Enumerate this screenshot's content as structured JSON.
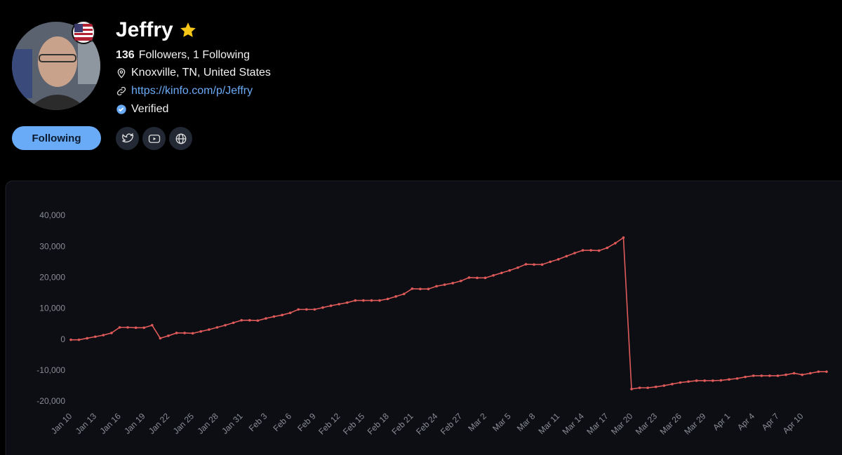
{
  "profile": {
    "name": "Jeffry",
    "followers": 136,
    "followers_text": "Followers, 1 Following",
    "location": "Knoxville, TN, United States",
    "url": "https://kinfo.com/p/Jeffry",
    "verified": "Verified",
    "follow_button": "Following"
  },
  "chart_data": {
    "type": "line",
    "categories": [
      "Jan 10",
      null,
      null,
      "Jan 13",
      null,
      null,
      "Jan 16",
      null,
      null,
      "Jan 19",
      null,
      null,
      "Jan 22",
      null,
      null,
      "Jan 25",
      null,
      null,
      "Jan 28",
      null,
      null,
      "Jan 31",
      null,
      null,
      "Feb 3",
      null,
      null,
      "Feb 6",
      null,
      null,
      "Feb 9",
      null,
      null,
      "Feb 12",
      null,
      null,
      "Feb 15",
      null,
      null,
      "Feb 18",
      null,
      null,
      "Feb 21",
      null,
      null,
      "Feb 24",
      null,
      null,
      "Feb 27",
      null,
      null,
      "Mar 2",
      null,
      null,
      "Mar 5",
      null,
      null,
      "Mar 8",
      null,
      null,
      "Mar 11",
      null,
      null,
      "Mar 14",
      null,
      null,
      "Mar 17",
      null,
      null,
      "Mar 20",
      null,
      null,
      "Mar 23",
      null,
      null,
      "Mar 26",
      null,
      null,
      "Mar 29",
      null,
      null,
      "Apr 1",
      null,
      null,
      "Apr 4",
      null,
      null,
      "Apr 7",
      null,
      null,
      "Apr 10",
      null,
      null,
      null
    ],
    "series": [
      {
        "color": "#e05a5a",
        "values": [
          0,
          0,
          500,
          1000,
          1500,
          2200,
          4000,
          4000,
          3900,
          3900,
          4700,
          500,
          1300,
          2200,
          2200,
          2100,
          2700,
          3300,
          4000,
          4700,
          5500,
          6300,
          6300,
          6200,
          6900,
          7500,
          8000,
          8700,
          9800,
          9800,
          9800,
          10400,
          11000,
          11500,
          12000,
          12700,
          12700,
          12700,
          12700,
          13200,
          14000,
          14800,
          16500,
          16400,
          16400,
          17300,
          17800,
          18300,
          19000,
          20100,
          20000,
          20000,
          20800,
          21600,
          22400,
          23300,
          24400,
          24300,
          24300,
          25200,
          26000,
          27000,
          28000,
          28900,
          28900,
          28800,
          29700,
          31200,
          33000,
          -15900,
          -15500,
          -15500,
          -15200,
          -14800,
          -14300,
          -13800,
          -13500,
          -13200,
          -13200,
          -13200,
          -13100,
          -12800,
          -12500,
          -12000,
          -11600,
          -11600,
          -11600,
          -11600,
          -11300,
          -10800,
          -11300,
          -10800,
          -10300,
          -10300
        ]
      }
    ],
    "ylim": [
      -20000,
      40000
    ],
    "yticks": [
      {
        "value": -20000,
        "label": "-20,000"
      },
      {
        "value": -10000,
        "label": "-10,000"
      },
      0,
      {
        "value": 10000,
        "label": "10,000"
      },
      {
        "value": 20000,
        "label": "20,000"
      },
      {
        "value": 30000,
        "label": "30,000"
      },
      {
        "value": 40000,
        "label": "40,000"
      }
    ],
    "grid": false
  }
}
